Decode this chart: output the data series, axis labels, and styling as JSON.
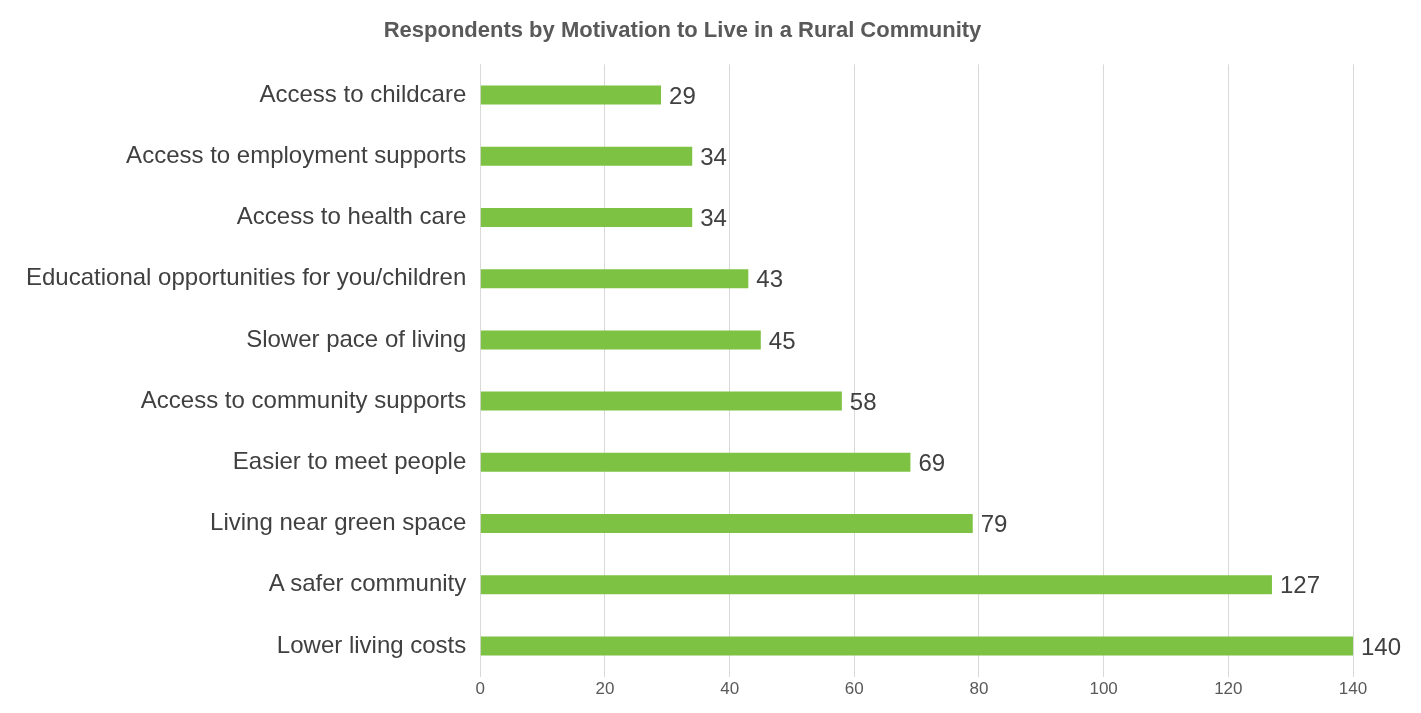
{
  "chart_data": {
    "type": "bar",
    "orientation": "horizontal",
    "title": "Respondents by Motivation to Live in a Rural Community",
    "categories": [
      "Access to childcare",
      "Access to employment supports",
      "Access to health care",
      "Educational opportunities for you/children",
      "Slower pace of living",
      "Access to community supports",
      "Easier to meet people",
      "Living near green space",
      "A safer community",
      "Lower living costs"
    ],
    "values": [
      29,
      34,
      34,
      43,
      45,
      58,
      69,
      79,
      127,
      140
    ],
    "color": "#7dc242",
    "xlim": [
      0,
      140
    ],
    "xticks": [
      0,
      20,
      40,
      60,
      80,
      100,
      120,
      140
    ],
    "grid": "x",
    "data_labels": true,
    "legend": false
  }
}
